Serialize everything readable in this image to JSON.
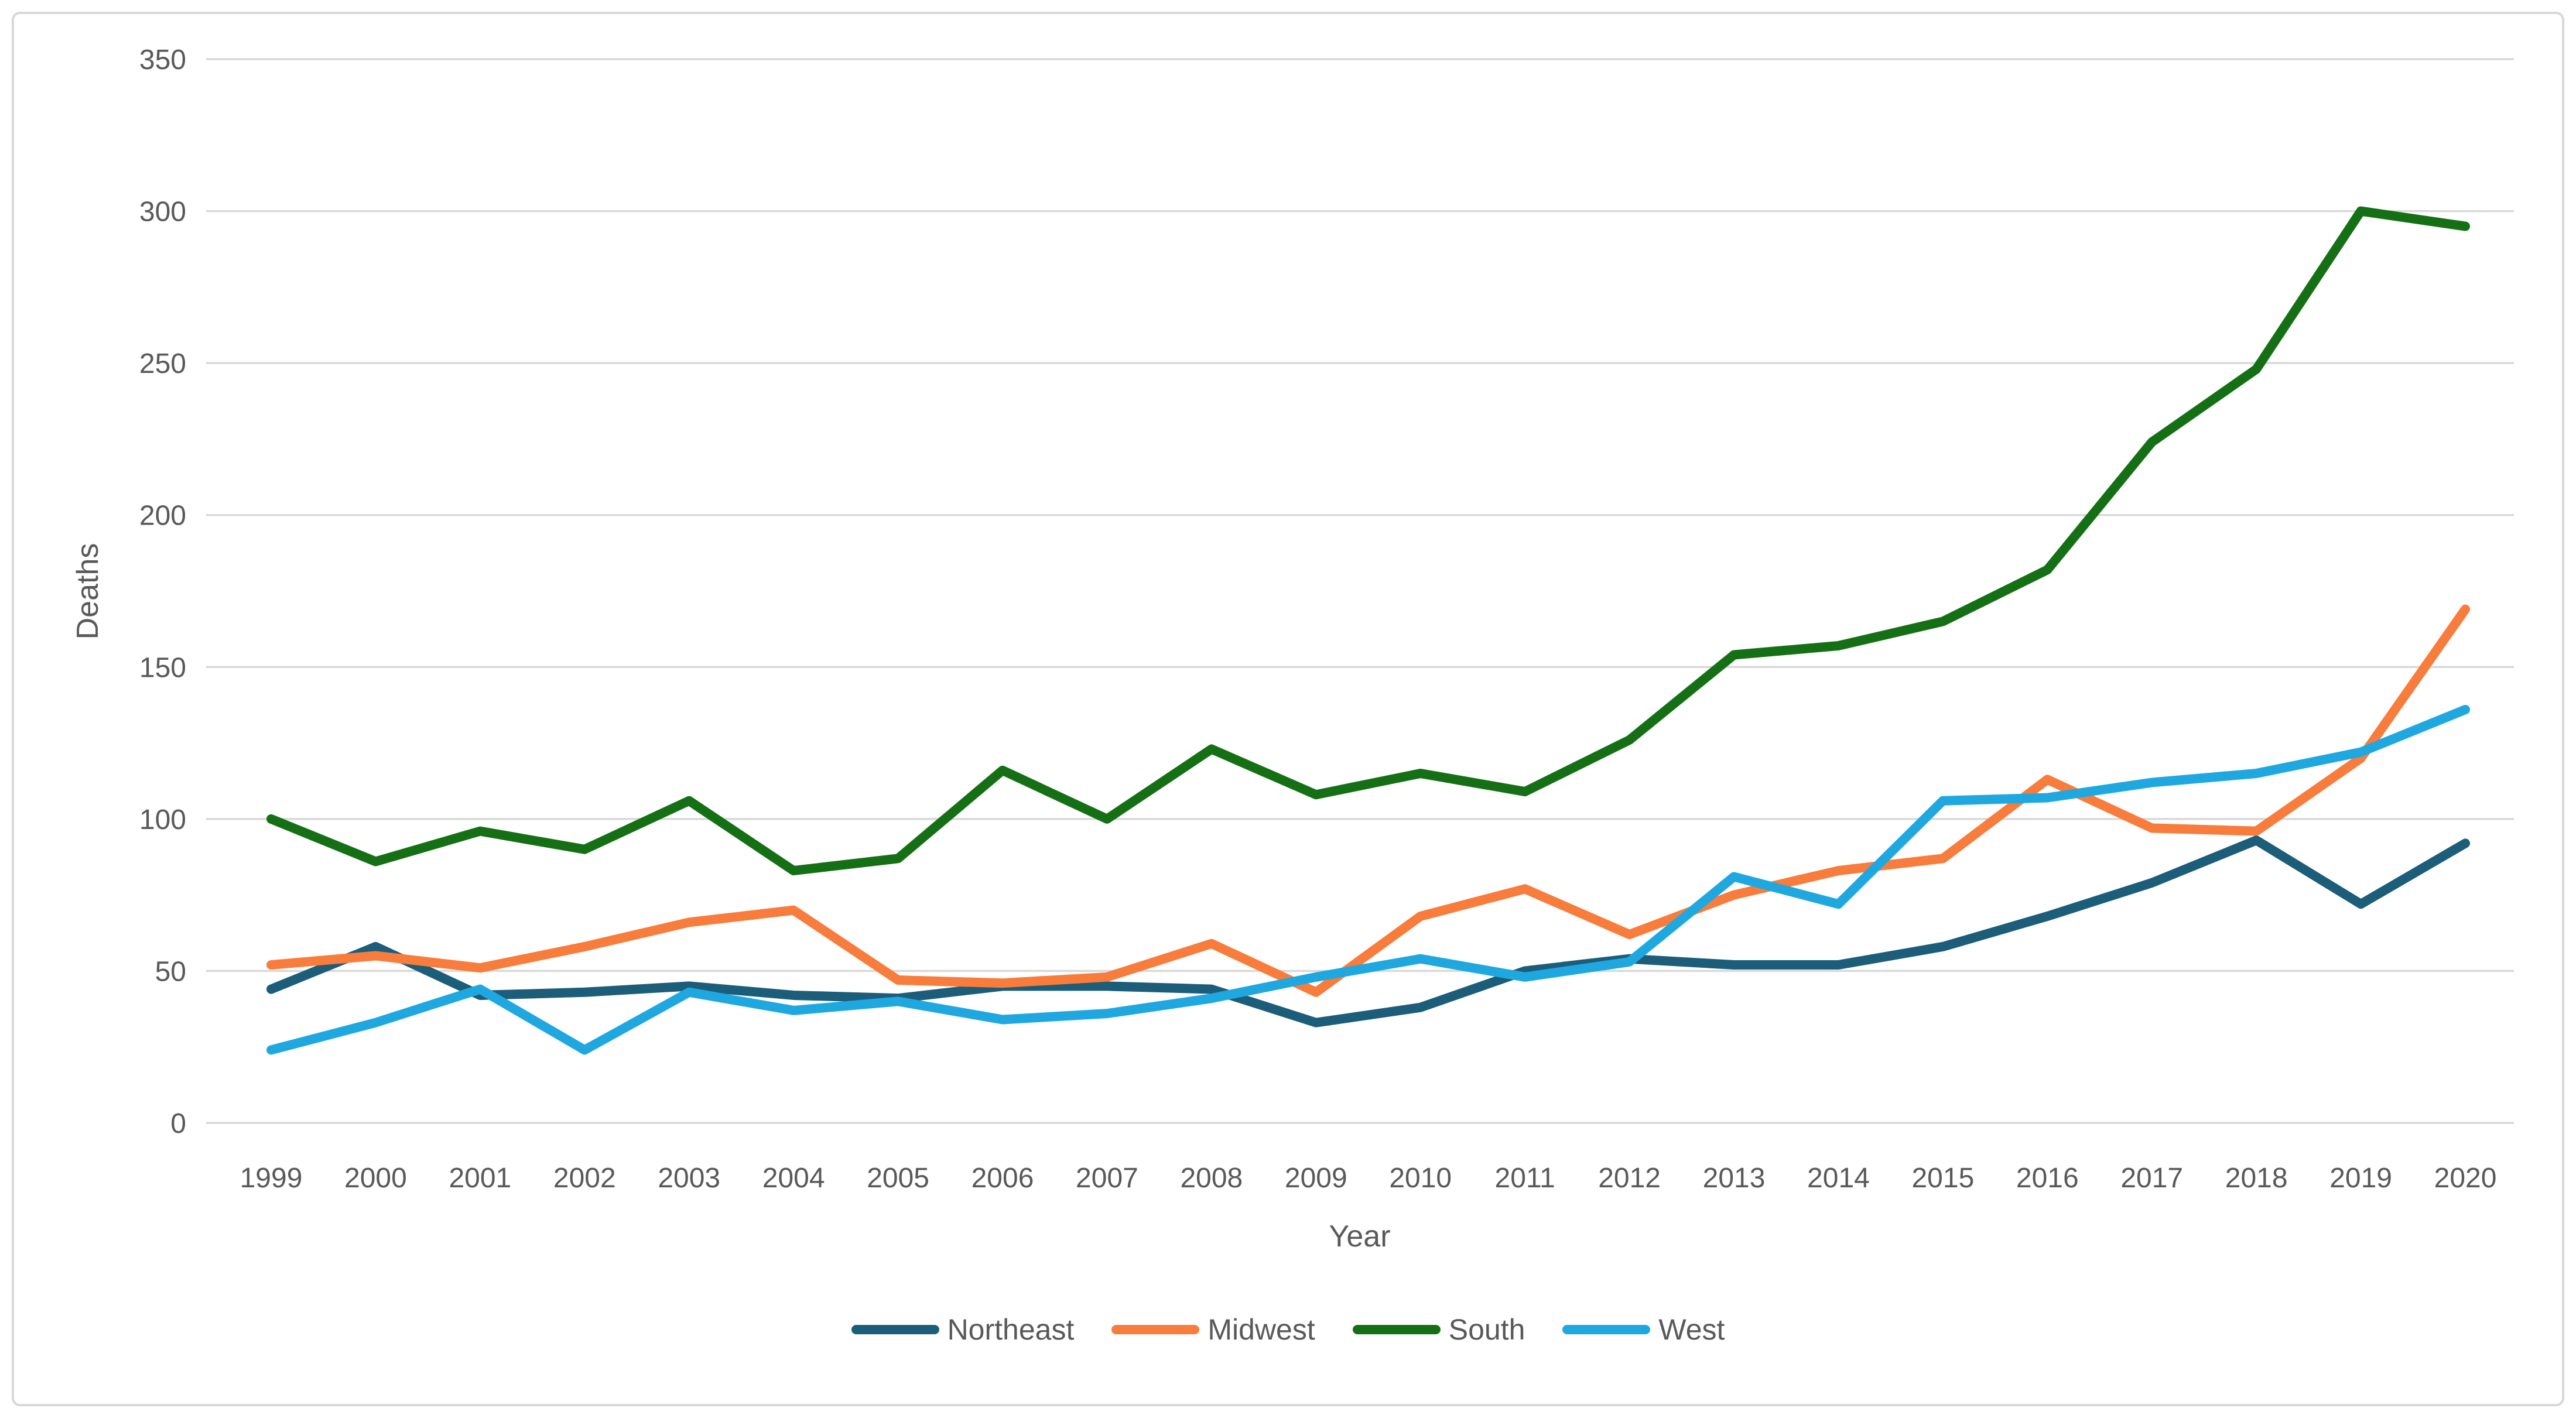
{
  "page": {
    "background": "#ffffff",
    "frame_border_color": "#d8d8d8"
  },
  "chart_data": {
    "type": "line",
    "title": "",
    "xlabel": "Year",
    "ylabel": "Deaths",
    "ylim": [
      0,
      350
    ],
    "ytick_step": 50,
    "ytick_labels": [
      "0",
      "50",
      "100",
      "150",
      "200",
      "250",
      "300",
      "350"
    ],
    "grid": true,
    "gridline_color": "#d9d9d9",
    "axis_text_color": "#595959",
    "legend_position": "bottom",
    "categories": [
      "1999",
      "2000",
      "2001",
      "2002",
      "2003",
      "2004",
      "2005",
      "2006",
      "2007",
      "2008",
      "2009",
      "2010",
      "2011",
      "2012",
      "2013",
      "2014",
      "2015",
      "2016",
      "2017",
      "2018",
      "2019",
      "2020"
    ],
    "series": [
      {
        "name": "Northeast",
        "color": "#1C5D7A",
        "values": [
          44,
          58,
          42,
          43,
          45,
          42,
          41,
          45,
          45,
          44,
          33,
          38,
          50,
          54,
          52,
          52,
          58,
          68,
          79,
          93,
          72,
          92
        ]
      },
      {
        "name": "Midwest",
        "color": "#F87C3C",
        "values": [
          52,
          55,
          51,
          58,
          66,
          70,
          47,
          46,
          48,
          59,
          43,
          68,
          77,
          62,
          75,
          83,
          87,
          113,
          97,
          96,
          120,
          169
        ]
      },
      {
        "name": "South",
        "color": "#157015",
        "values": [
          100,
          86,
          96,
          90,
          106,
          83,
          87,
          116,
          100,
          123,
          108,
          115,
          109,
          126,
          154,
          157,
          165,
          182,
          224,
          248,
          300,
          295
        ]
      },
      {
        "name": "West",
        "color": "#1FA8E0",
        "values": [
          24,
          33,
          44,
          24,
          43,
          37,
          40,
          34,
          36,
          41,
          48,
          54,
          48,
          53,
          81,
          72,
          106,
          107,
          112,
          115,
          122,
          136
        ]
      }
    ]
  }
}
